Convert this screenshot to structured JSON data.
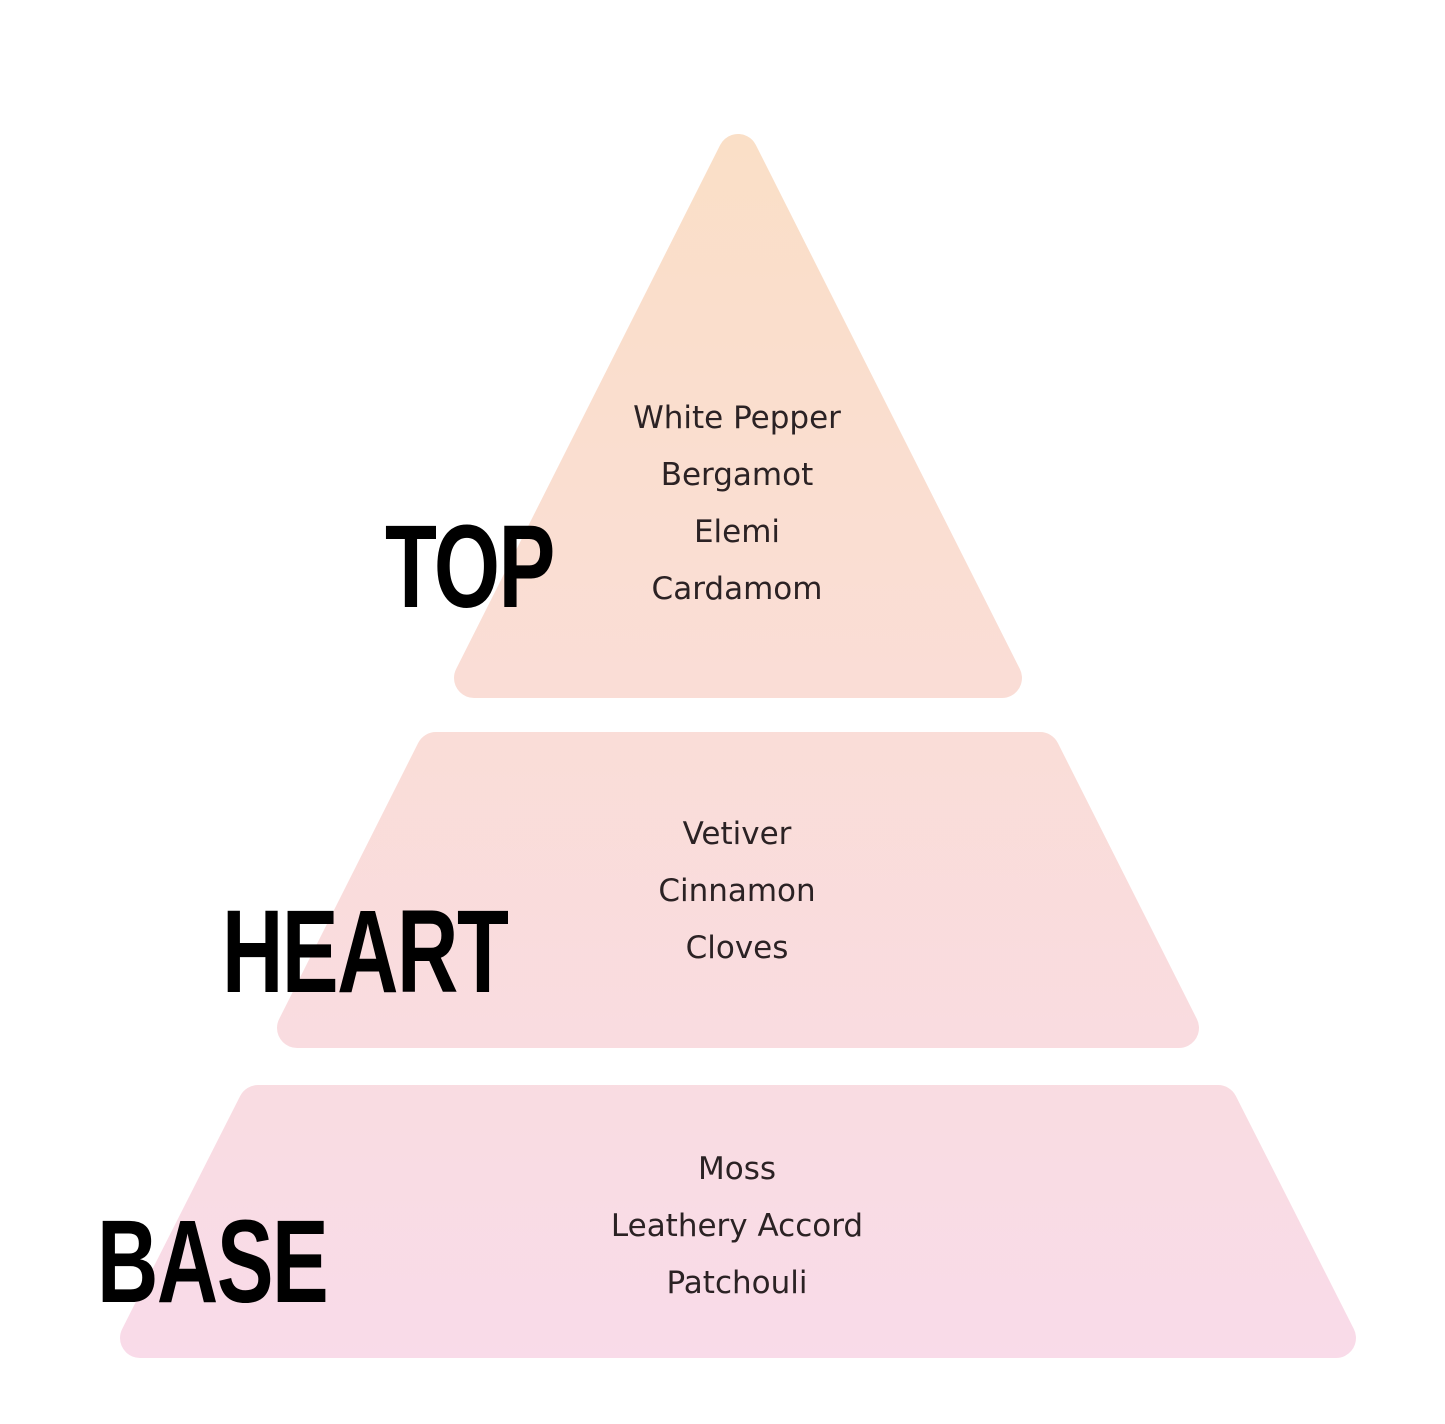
{
  "colors": {
    "top": "#fadfc8",
    "bottom": "#f9dbe9",
    "label": "#000000",
    "text": "#2b2224"
  },
  "tiers": [
    {
      "label": "TOP",
      "notes": [
        "White Pepper",
        "Bergamot",
        "Elemi",
        "Cardamom"
      ]
    },
    {
      "label": "HEART",
      "notes": [
        "Vetiver",
        "Cinnamon",
        "Cloves"
      ]
    },
    {
      "label": "BASE",
      "notes": [
        "Moss",
        "Leathery Accord",
        "Patchouli"
      ]
    }
  ]
}
